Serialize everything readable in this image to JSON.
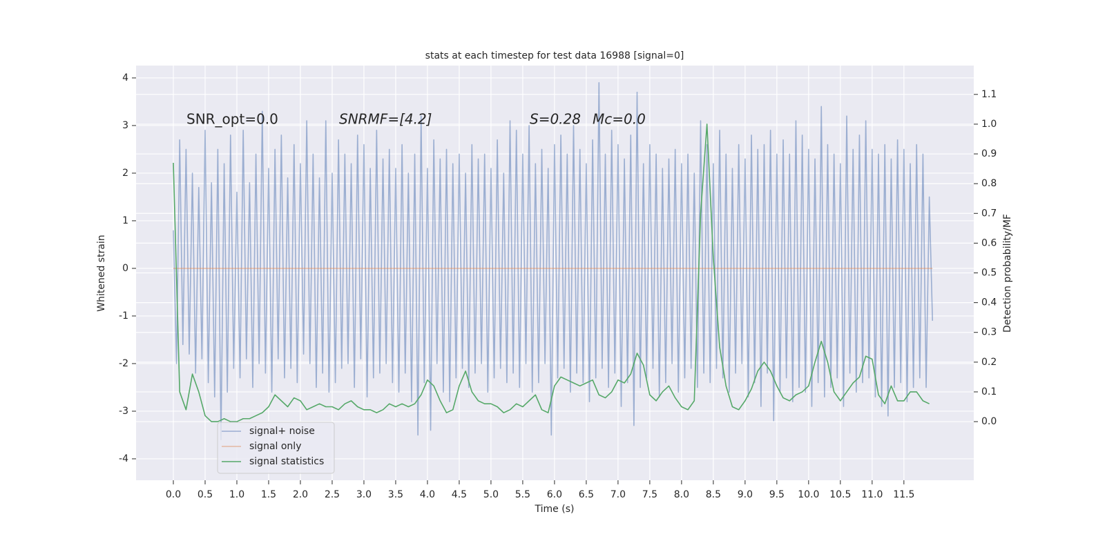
{
  "chart_data": {
    "type": "line",
    "title": "stats at each timestep for test data 16988 [signal=0]",
    "xlabel": "Time (s)",
    "ylabel": "Whitened strain",
    "y2label": "Detection probability/MF",
    "annotations": [
      "SNR_opt=0.0",
      "SNRMF=[4.2]",
      "S=0.28",
      "Mc=0.0"
    ],
    "grid": true,
    "legend": "lower left",
    "xlim": [
      -0.587,
      12.6
    ],
    "ylim": [
      -4.45,
      4.26
    ],
    "y2lim": [
      -0.197,
      1.197
    ],
    "xticks": [
      {
        "value": 0,
        "label": "0.0"
      },
      {
        "value": 0.5,
        "label": "0.5"
      },
      {
        "value": 1,
        "label": "1.0"
      },
      {
        "value": 1.5,
        "label": "1.5"
      },
      {
        "value": 2,
        "label": "2.0"
      },
      {
        "value": 2.5,
        "label": "2.5"
      },
      {
        "value": 3,
        "label": "3.0"
      },
      {
        "value": 3.5,
        "label": "3.5"
      },
      {
        "value": 4,
        "label": "4.0"
      },
      {
        "value": 4.5,
        "label": "4.5"
      },
      {
        "value": 5,
        "label": "5.0"
      },
      {
        "value": 5.5,
        "label": "5.5"
      },
      {
        "value": 6,
        "label": "6.0"
      },
      {
        "value": 6.5,
        "label": "6.5"
      },
      {
        "value": 7,
        "label": "7.0"
      },
      {
        "value": 7.5,
        "label": "7.5"
      },
      {
        "value": 8,
        "label": "8.0"
      },
      {
        "value": 8.5,
        "label": "8.5"
      },
      {
        "value": 9,
        "label": "9.0"
      },
      {
        "value": 9.5,
        "label": "9.5"
      },
      {
        "value": 10,
        "label": "10.0"
      },
      {
        "value": 10.5,
        "label": "10.5"
      },
      {
        "value": 11,
        "label": "11.0"
      },
      {
        "value": 11.5,
        "label": "11.5"
      }
    ],
    "yticks": [
      -4,
      -3,
      -2,
      -1,
      0,
      1,
      2,
      3,
      4
    ],
    "y2ticks": [
      {
        "value": 0,
        "label": "0.0"
      },
      {
        "value": 0.1,
        "label": "0.1"
      },
      {
        "value": 0.2,
        "label": "0.2"
      },
      {
        "value": 0.3,
        "label": "0.3"
      },
      {
        "value": 0.4,
        "label": "0.4"
      },
      {
        "value": 0.5,
        "label": "0.5"
      },
      {
        "value": 0.6,
        "label": "0.6"
      },
      {
        "value": 0.7,
        "label": "0.7"
      },
      {
        "value": 0.8,
        "label": "0.8"
      },
      {
        "value": 0.9,
        "label": "0.9"
      },
      {
        "value": 1,
        "label": "1.0"
      },
      {
        "value": 1.1,
        "label": "1.1"
      }
    ],
    "series": [
      {
        "name": "signal+ noise",
        "color": "#4c72b0",
        "alpha": 0.5,
        "x": [
          0,
          0.05,
          0.1,
          0.15,
          0.2,
          0.25,
          0.3,
          0.35,
          0.4,
          0.45,
          0.5,
          0.55,
          0.6,
          0.65,
          0.7,
          0.75,
          0.8,
          0.85,
          0.9,
          0.95,
          1,
          1.05,
          1.1,
          1.15,
          1.2,
          1.25,
          1.3,
          1.35,
          1.4,
          1.45,
          1.5,
          1.55,
          1.6,
          1.65,
          1.7,
          1.75,
          1.8,
          1.85,
          1.9,
          1.95,
          2,
          2.05,
          2.1,
          2.15,
          2.2,
          2.25,
          2.3,
          2.35,
          2.4,
          2.45,
          2.5,
          2.55,
          2.6,
          2.65,
          2.7,
          2.75,
          2.8,
          2.85,
          2.9,
          2.95,
          3,
          3.05,
          3.1,
          3.15,
          3.2,
          3.25,
          3.3,
          3.35,
          3.4,
          3.45,
          3.5,
          3.55,
          3.6,
          3.65,
          3.7,
          3.75,
          3.8,
          3.85,
          3.9,
          3.95,
          4,
          4.05,
          4.1,
          4.15,
          4.2,
          4.25,
          4.3,
          4.35,
          4.4,
          4.45,
          4.5,
          4.55,
          4.6,
          4.65,
          4.7,
          4.75,
          4.8,
          4.85,
          4.9,
          4.95,
          5,
          5.05,
          5.1,
          5.15,
          5.2,
          5.25,
          5.3,
          5.35,
          5.4,
          5.45,
          5.5,
          5.55,
          5.6,
          5.65,
          5.7,
          5.75,
          5.8,
          5.85,
          5.9,
          5.95,
          6,
          6.05,
          6.1,
          6.15,
          6.2,
          6.25,
          6.3,
          6.35,
          6.4,
          6.45,
          6.5,
          6.55,
          6.6,
          6.65,
          6.7,
          6.75,
          6.8,
          6.85,
          6.9,
          6.95,
          7,
          7.05,
          7.1,
          7.15,
          7.2,
          7.25,
          7.3,
          7.35,
          7.4,
          7.45,
          7.5,
          7.55,
          7.6,
          7.65,
          7.7,
          7.75,
          7.8,
          7.85,
          7.9,
          7.95,
          8,
          8.05,
          8.1,
          8.15,
          8.2,
          8.25,
          8.3,
          8.35,
          8.4,
          8.45,
          8.5,
          8.55,
          8.6,
          8.65,
          8.7,
          8.75,
          8.8,
          8.85,
          8.9,
          8.95,
          9,
          9.05,
          9.1,
          9.15,
          9.2,
          9.25,
          9.3,
          9.35,
          9.4,
          9.45,
          9.5,
          9.55,
          9.6,
          9.65,
          9.7,
          9.75,
          9.8,
          9.85,
          9.9,
          9.95,
          10,
          10.05,
          10.1,
          10.15,
          10.2,
          10.25,
          10.3,
          10.35,
          10.4,
          10.45,
          10.5,
          10.55,
          10.6,
          10.65,
          10.7,
          10.75,
          10.8,
          10.85,
          10.9,
          10.95,
          11,
          11.05,
          11.1,
          11.15,
          11.2,
          11.25,
          11.3,
          11.35,
          11.4,
          11.45,
          11.5,
          11.55,
          11.6,
          11.65,
          11.7,
          11.75,
          11.8,
          11.85,
          11.9,
          11.95
        ],
        "values": [
          0.8,
          -2.0,
          2.7,
          -1.6,
          2.5,
          -1.8,
          2.0,
          -2.2,
          1.7,
          -1.9,
          2.9,
          -2.4,
          1.8,
          -2.7,
          2.5,
          -3.6,
          2.2,
          -2.6,
          2.8,
          -2.1,
          1.6,
          -2.3,
          2.9,
          -1.9,
          1.8,
          -2.5,
          2.4,
          -2.0,
          3.3,
          -2.2,
          2.1,
          -2.6,
          2.5,
          -1.9,
          2.8,
          -2.3,
          1.9,
          -2.1,
          2.6,
          -2.4,
          2.2,
          -1.8,
          3.1,
          -2.0,
          2.4,
          -2.5,
          1.9,
          -2.2,
          3.1,
          -2.6,
          2.0,
          -2.4,
          2.7,
          -2.1,
          2.4,
          -2.0,
          2.2,
          -2.5,
          2.8,
          -1.9,
          2.6,
          -2.7,
          2.1,
          -2.3,
          2.9,
          -2.2,
          2.3,
          -2.0,
          2.5,
          -2.4,
          2.1,
          -2.6,
          2.6,
          -2.2,
          2.0,
          -2.8,
          2.4,
          -3.5,
          3.2,
          -2.4,
          2.1,
          -3.4,
          2.7,
          -2.0,
          2.3,
          -2.6,
          2.5,
          -2.8,
          2.2,
          -2.3,
          2.4,
          -2.1,
          2.0,
          -2.5,
          2.6,
          -2.2,
          2.3,
          -2.0,
          2.4,
          -2.6,
          2.1,
          -2.3,
          2.7,
          -2.1,
          2.0,
          -2.4,
          3.1,
          -2.2,
          2.9,
          -2.5,
          2.4,
          -2.0,
          3.0,
          -2.6,
          2.2,
          -2.4,
          2.5,
          -2.0,
          2.1,
          -3.5,
          2.6,
          -2.3,
          2.8,
          -2.1,
          2.4,
          -2.6,
          3.0,
          -2.2,
          2.5,
          -2.4,
          2.2,
          -2.8,
          2.7,
          -2.3,
          3.9,
          -2.1,
          2.4,
          -2.5,
          2.9,
          -2.2,
          2.6,
          -2.9,
          2.3,
          -2.4,
          2.8,
          -3.3,
          3.7,
          -2.5,
          2.2,
          -2.3,
          2.6,
          -2.1,
          2.4,
          -2.7,
          2.1,
          -2.4,
          2.3,
          -2.0,
          2.5,
          -2.6,
          2.2,
          -2.3,
          2.4,
          -2.1,
          2.0,
          -2.5,
          3.1,
          -2.2,
          2.6,
          -2.4,
          2.2,
          -2.1,
          2.9,
          -2.3,
          2.4,
          -2.6,
          2.1,
          -2.2,
          2.6,
          -2.0,
          2.3,
          -2.7,
          2.8,
          -2.4,
          2.5,
          -2.9,
          2.6,
          -2.2,
          2.9,
          -3.2,
          2.4,
          -2.6,
          2.7,
          -2.3,
          2.4,
          -2.8,
          3.1,
          -2.5,
          2.8,
          -2.6,
          2.5,
          -2.9,
          2.3,
          -2.4,
          3.4,
          -2.7,
          2.6,
          -2.5,
          2.4,
          -2.3,
          2.2,
          -2.9,
          3.2,
          -2.2,
          2.5,
          -2.6,
          2.8,
          -2.4,
          3.1,
          -2.3,
          2.5,
          -2.7,
          2.4,
          -2.9,
          2.6,
          -3.1,
          2.3,
          -2.5,
          2.7,
          -2.4,
          2.5,
          -2.8,
          2.2,
          -2.5,
          2.6,
          -2.3,
          2.4,
          -2.5,
          1.5,
          -1.1
        ]
      },
      {
        "name": "signal only",
        "color": "#dd8452",
        "alpha": 0.5,
        "x": [
          0,
          11.95
        ],
        "values": [
          0,
          0
        ]
      },
      {
        "name": "signal statistics",
        "color": "#55a868",
        "axis": "y2",
        "x": [
          0,
          0.1,
          0.2,
          0.3,
          0.4,
          0.5,
          0.6,
          0.7,
          0.8,
          0.9,
          1,
          1.1,
          1.2,
          1.3,
          1.4,
          1.5,
          1.6,
          1.7,
          1.8,
          1.9,
          2,
          2.1,
          2.2,
          2.3,
          2.4,
          2.5,
          2.6,
          2.7,
          2.8,
          2.9,
          3,
          3.1,
          3.2,
          3.3,
          3.4,
          3.5,
          3.6,
          3.7,
          3.8,
          3.9,
          4,
          4.1,
          4.2,
          4.3,
          4.4,
          4.5,
          4.6,
          4.7,
          4.8,
          4.9,
          5,
          5.1,
          5.2,
          5.3,
          5.4,
          5.5,
          5.6,
          5.7,
          5.8,
          5.9,
          6,
          6.1,
          6.2,
          6.3,
          6.4,
          6.5,
          6.6,
          6.7,
          6.8,
          6.9,
          7,
          7.1,
          7.2,
          7.3,
          7.4,
          7.5,
          7.6,
          7.7,
          7.8,
          7.9,
          8,
          8.1,
          8.2,
          8.3,
          8.4,
          8.5,
          8.6,
          8.7,
          8.8,
          8.9,
          9,
          9.1,
          9.2,
          9.3,
          9.4,
          9.5,
          9.6,
          9.7,
          9.8,
          9.9,
          10,
          10.1,
          10.2,
          10.3,
          10.4,
          10.5,
          10.6,
          10.7,
          10.8,
          10.9,
          11,
          11.1,
          11.2,
          11.3,
          11.4,
          11.5,
          11.6,
          11.7,
          11.8,
          11.9
        ],
        "values": [
          0.87,
          0.1,
          0.04,
          0.16,
          0.1,
          0.02,
          0,
          0,
          0.01,
          0,
          0,
          0.01,
          0.01,
          0.02,
          0.03,
          0.05,
          0.09,
          0.07,
          0.05,
          0.08,
          0.07,
          0.04,
          0.05,
          0.06,
          0.05,
          0.05,
          0.04,
          0.06,
          0.07,
          0.05,
          0.04,
          0.04,
          0.03,
          0.04,
          0.06,
          0.05,
          0.06,
          0.05,
          0.06,
          0.09,
          0.14,
          0.12,
          0.07,
          0.03,
          0.04,
          0.12,
          0.17,
          0.1,
          0.07,
          0.06,
          0.06,
          0.05,
          0.03,
          0.04,
          0.06,
          0.05,
          0.07,
          0.09,
          0.04,
          0.03,
          0.12,
          0.15,
          0.14,
          0.13,
          0.12,
          0.13,
          0.14,
          0.09,
          0.08,
          0.1,
          0.14,
          0.13,
          0.16,
          0.23,
          0.19,
          0.09,
          0.07,
          0.1,
          0.12,
          0.08,
          0.05,
          0.04,
          0.07,
          0.7,
          1.0,
          0.55,
          0.25,
          0.12,
          0.05,
          0.04,
          0.07,
          0.11,
          0.17,
          0.2,
          0.17,
          0.12,
          0.08,
          0.07,
          0.09,
          0.1,
          0.12,
          0.2,
          0.27,
          0.2,
          0.1,
          0.07,
          0.1,
          0.13,
          0.15,
          0.22,
          0.21,
          0.09,
          0.06,
          0.12,
          0.07,
          0.07,
          0.1,
          0.1,
          0.07,
          0.06
        ]
      }
    ]
  }
}
